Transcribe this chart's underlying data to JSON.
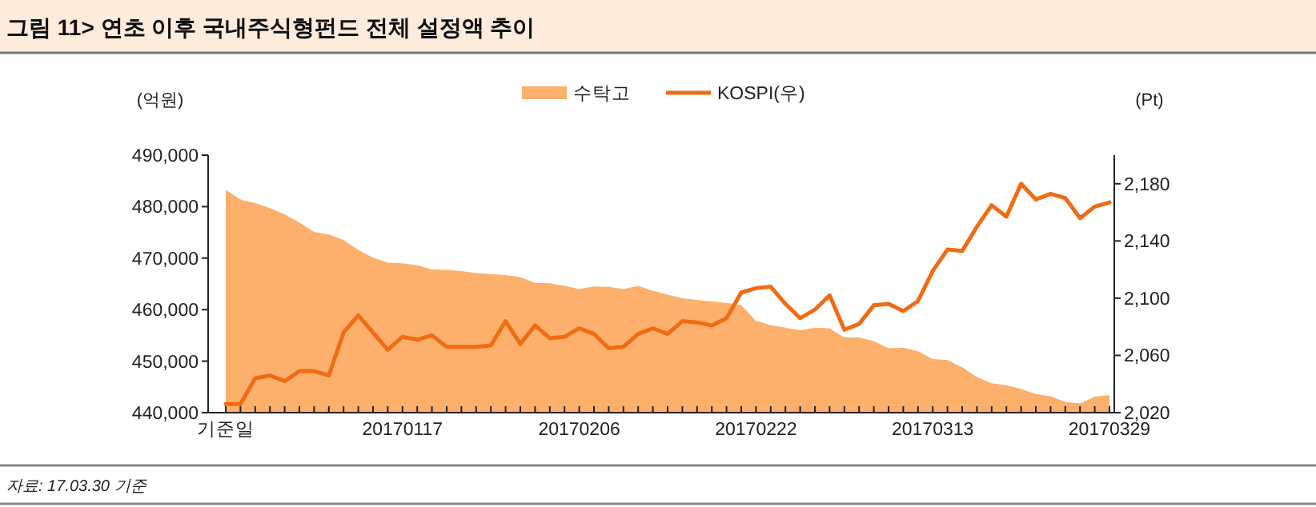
{
  "chart_data": {
    "type": "area",
    "title": "그림 11> 연초 이후 국내주식형펀드 전체 설정액 추이",
    "ylabel": "(억원)",
    "y2label": "(Pt)",
    "annotations": [
      "자료: 17.03.30 기준"
    ],
    "categories": [
      "기준일",
      null,
      null,
      null,
      null,
      null,
      null,
      null,
      null,
      null,
      null,
      null,
      "20170117",
      null,
      null,
      null,
      null,
      null,
      null,
      null,
      null,
      null,
      null,
      null,
      "20170206",
      null,
      null,
      null,
      null,
      null,
      null,
      null,
      null,
      null,
      null,
      null,
      "20170222",
      null,
      null,
      null,
      null,
      null,
      null,
      null,
      null,
      null,
      null,
      null,
      "20170313",
      null,
      null,
      null,
      null,
      null,
      null,
      null,
      null,
      null,
      null,
      null,
      "20170329"
    ],
    "series": [
      {
        "name": "수탁고",
        "color": "#fdb06b",
        "values": [
          483300,
          481400,
          480700,
          479700,
          478500,
          476900,
          475100,
          474600,
          473500,
          471600,
          470100,
          469100,
          469000,
          468600,
          467800,
          467700,
          467500,
          467100,
          466900,
          466700,
          466300,
          465200,
          465100,
          464600,
          464000,
          464500,
          464400,
          464000,
          464600,
          463700,
          462900,
          462200,
          461900,
          461600,
          461300,
          460900,
          457800,
          457000,
          456500,
          456000,
          456500,
          456400,
          454600,
          454600,
          453900,
          452500,
          452600,
          451900,
          450400,
          450200,
          448800,
          446900,
          445700,
          445300,
          444600,
          443600,
          443200,
          442100,
          441800,
          443100,
          443400
        ]
      },
      {
        "name": "KOSPI(우)",
        "type": "line",
        "axis": "y2",
        "color": "#f06c14",
        "values": [
          2026,
          2026,
          2044,
          2046,
          2042,
          2049,
          2049,
          2046,
          2076,
          2088,
          2076,
          2064,
          2073,
          2071,
          2074,
          2066,
          2066,
          2066,
          2067,
          2084,
          2068,
          2081,
          2072,
          2073,
          2079,
          2075,
          2065,
          2066,
          2075,
          2079,
          2075,
          2084,
          2083,
          2081,
          2086,
          2104,
          2107,
          2108,
          2096,
          2086,
          2092,
          2102,
          2078,
          2082,
          2095,
          2096,
          2091,
          2098,
          2119,
          2134,
          2133,
          2150,
          2165,
          2157,
          2180,
          2169,
          2173,
          2170,
          2156,
          2164,
          2167
        ]
      }
    ],
    "ylim": [
      440000,
      490000
    ],
    "yticks": [
      {
        "value": 440000,
        "label": "440,000"
      },
      {
        "value": 450000,
        "label": "450,000"
      },
      {
        "value": 460000,
        "label": "460,000"
      },
      {
        "value": 470000,
        "label": "470,000"
      },
      {
        "value": 480000,
        "label": "480,000"
      },
      {
        "value": 490000,
        "label": "490,000"
      }
    ],
    "y2lim": [
      2020,
      2200
    ],
    "y2ticks": [
      {
        "value": 2020,
        "label": "2,020"
      },
      {
        "value": 2060,
        "label": "2,060"
      },
      {
        "value": 2100,
        "label": "2,100"
      },
      {
        "value": 2140,
        "label": "2,140"
      },
      {
        "value": 2180,
        "label": "2,180"
      }
    ],
    "legend": "top",
    "grid": false
  }
}
